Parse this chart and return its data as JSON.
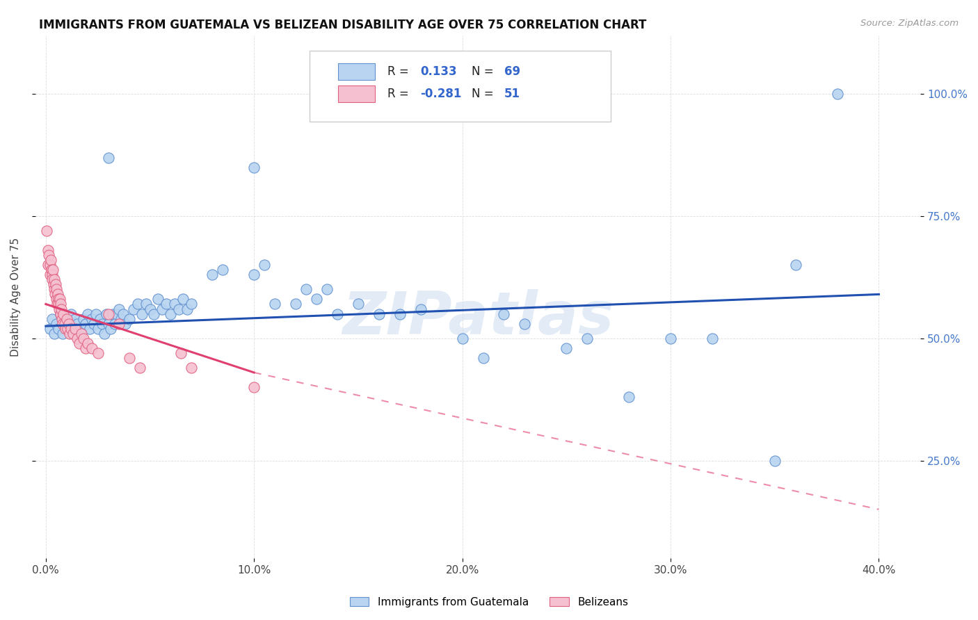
{
  "title": "IMMIGRANTS FROM GUATEMALA VS BELIZEAN DISABILITY AGE OVER 75 CORRELATION CHART",
  "source": "Source: ZipAtlas.com",
  "ylabel": "Disability Age Over 75",
  "x_tick_labels": [
    "0.0%",
    "10.0%",
    "20.0%",
    "30.0%",
    "40.0%"
  ],
  "x_ticks": [
    0.0,
    10.0,
    20.0,
    30.0,
    40.0
  ],
  "y_tick_labels_right": [
    "25.0%",
    "50.0%",
    "75.0%",
    "100.0%"
  ],
  "y_ticks": [
    25.0,
    50.0,
    75.0,
    100.0
  ],
  "xlim": [
    -0.5,
    42.0
  ],
  "ylim": [
    5.0,
    112.0
  ],
  "blue_color": "#b8d4f0",
  "pink_color": "#f5c0d0",
  "blue_edge_color": "#6090d0",
  "pink_edge_color": "#e06080",
  "blue_line_color": "#2050b0",
  "pink_line_color": "#e04070",
  "scatter_blue": [
    [
      0.2,
      52
    ],
    [
      0.3,
      54
    ],
    [
      0.4,
      51
    ],
    [
      0.5,
      53
    ],
    [
      0.6,
      52
    ],
    [
      0.7,
      55
    ],
    [
      0.8,
      51
    ],
    [
      0.9,
      54
    ],
    [
      1.0,
      52
    ],
    [
      1.1,
      53
    ],
    [
      1.2,
      55
    ],
    [
      1.3,
      52
    ],
    [
      1.4,
      54
    ],
    [
      1.5,
      53
    ],
    [
      1.6,
      51
    ],
    [
      1.7,
      52
    ],
    [
      1.8,
      54
    ],
    [
      1.9,
      53
    ],
    [
      2.0,
      55
    ],
    [
      2.1,
      52
    ],
    [
      2.2,
      54
    ],
    [
      2.3,
      53
    ],
    [
      2.4,
      55
    ],
    [
      2.5,
      52
    ],
    [
      2.6,
      54
    ],
    [
      2.7,
      53
    ],
    [
      2.8,
      51
    ],
    [
      2.9,
      55
    ],
    [
      3.0,
      53
    ],
    [
      3.1,
      52
    ],
    [
      3.2,
      55
    ],
    [
      3.3,
      53
    ],
    [
      3.4,
      55
    ],
    [
      3.5,
      56
    ],
    [
      3.6,
      54
    ],
    [
      3.7,
      55
    ],
    [
      3.8,
      53
    ],
    [
      4.0,
      54
    ],
    [
      4.2,
      56
    ],
    [
      4.4,
      57
    ],
    [
      4.6,
      55
    ],
    [
      4.8,
      57
    ],
    [
      5.0,
      56
    ],
    [
      5.2,
      55
    ],
    [
      5.4,
      58
    ],
    [
      5.6,
      56
    ],
    [
      5.8,
      57
    ],
    [
      6.0,
      55
    ],
    [
      6.2,
      57
    ],
    [
      6.4,
      56
    ],
    [
      6.6,
      58
    ],
    [
      6.8,
      56
    ],
    [
      7.0,
      57
    ],
    [
      8.0,
      63
    ],
    [
      8.5,
      64
    ],
    [
      10.0,
      63
    ],
    [
      10.5,
      65
    ],
    [
      11.0,
      57
    ],
    [
      12.0,
      57
    ],
    [
      12.5,
      60
    ],
    [
      13.0,
      58
    ],
    [
      13.5,
      60
    ],
    [
      14.0,
      55
    ],
    [
      15.0,
      57
    ],
    [
      16.0,
      55
    ],
    [
      17.0,
      55
    ],
    [
      18.0,
      56
    ],
    [
      20.0,
      50
    ],
    [
      21.0,
      46
    ],
    [
      22.0,
      55
    ],
    [
      23.0,
      53
    ],
    [
      25.0,
      48
    ],
    [
      26.0,
      50
    ],
    [
      28.0,
      38
    ],
    [
      30.0,
      50
    ],
    [
      32.0,
      50
    ],
    [
      35.0,
      25
    ],
    [
      36.0,
      65
    ],
    [
      38.0,
      100
    ],
    [
      10.0,
      85
    ],
    [
      3.0,
      87
    ]
  ],
  "scatter_pink": [
    [
      0.05,
      72
    ],
    [
      0.1,
      68
    ],
    [
      0.12,
      65
    ],
    [
      0.15,
      67
    ],
    [
      0.2,
      65
    ],
    [
      0.22,
      63
    ],
    [
      0.25,
      66
    ],
    [
      0.28,
      64
    ],
    [
      0.3,
      63
    ],
    [
      0.32,
      62
    ],
    [
      0.35,
      64
    ],
    [
      0.38,
      61
    ],
    [
      0.4,
      60
    ],
    [
      0.42,
      62
    ],
    [
      0.45,
      59
    ],
    [
      0.48,
      61
    ],
    [
      0.5,
      58
    ],
    [
      0.52,
      60
    ],
    [
      0.55,
      57
    ],
    [
      0.58,
      59
    ],
    [
      0.6,
      58
    ],
    [
      0.62,
      57
    ],
    [
      0.65,
      56
    ],
    [
      0.68,
      58
    ],
    [
      0.7,
      55
    ],
    [
      0.72,
      57
    ],
    [
      0.75,
      56
    ],
    [
      0.78,
      54
    ],
    [
      0.8,
      53
    ],
    [
      0.85,
      55
    ],
    [
      0.9,
      53
    ],
    [
      0.95,
      52
    ],
    [
      1.0,
      54
    ],
    [
      1.05,
      52
    ],
    [
      1.1,
      53
    ],
    [
      1.15,
      51
    ],
    [
      1.2,
      52
    ],
    [
      1.3,
      51
    ],
    [
      1.4,
      52
    ],
    [
      1.5,
      50
    ],
    [
      1.6,
      49
    ],
    [
      1.7,
      51
    ],
    [
      1.8,
      50
    ],
    [
      1.9,
      48
    ],
    [
      2.0,
      49
    ],
    [
      2.2,
      48
    ],
    [
      2.5,
      47
    ],
    [
      3.0,
      55
    ],
    [
      3.5,
      53
    ],
    [
      4.0,
      46
    ],
    [
      4.5,
      44
    ],
    [
      6.5,
      47
    ],
    [
      7.0,
      44
    ],
    [
      10.0,
      40
    ]
  ],
  "blue_trend": [
    0.0,
    40.0,
    52.5,
    59.0
  ],
  "pink_solid": [
    0.0,
    10.0,
    57.0,
    43.0
  ],
  "pink_dash": [
    10.0,
    40.0,
    43.0,
    15.0
  ],
  "watermark": "ZIPatlas",
  "legend_label1": "Immigrants from Guatemala",
  "legend_label2": "Belizeans"
}
